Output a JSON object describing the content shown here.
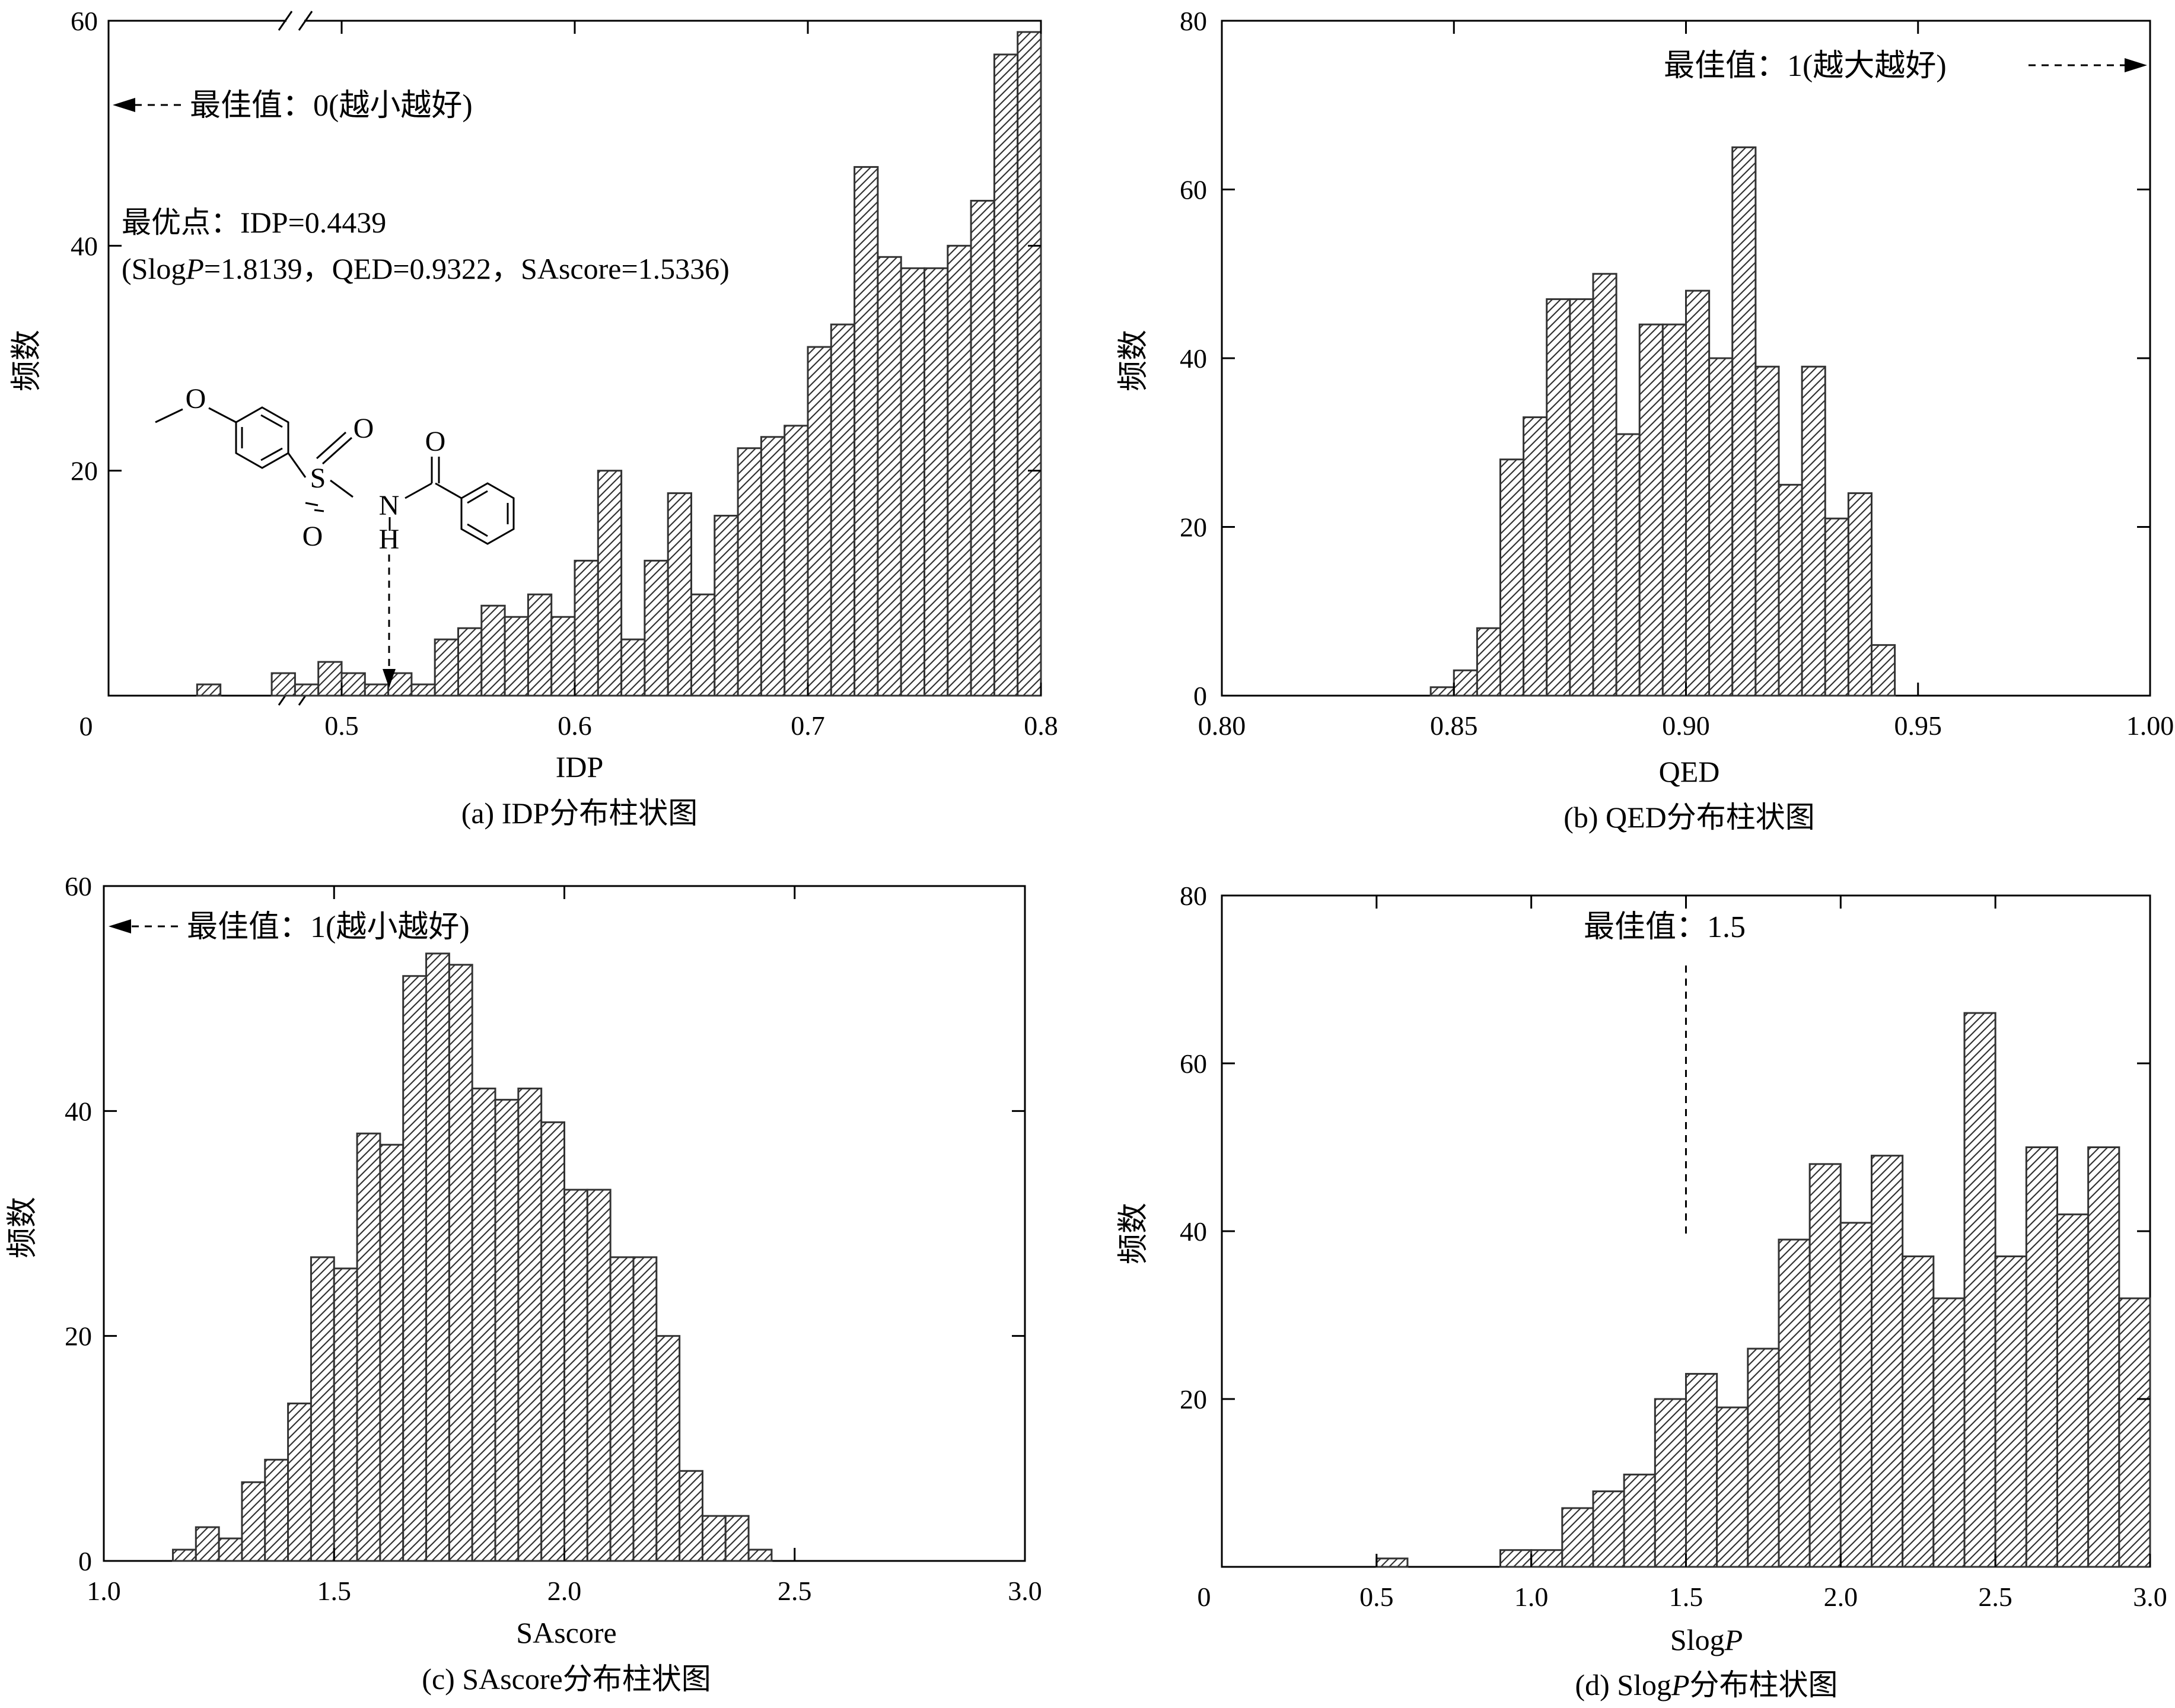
{
  "chart_data": [
    {
      "type": "bar",
      "caption": "(a) IDP分布柱状图",
      "xlabel": "IDP",
      "ylabel": "频数",
      "xlim": [
        0.4,
        0.8
      ],
      "ylim": [
        0,
        60
      ],
      "x_axis_break": true,
      "x_ticks": [
        0.5,
        0.6,
        0.7,
        0.8
      ],
      "x_tick_labels": [
        "0.5",
        "0.6",
        "0.7",
        "0.8"
      ],
      "x_origin_label": "0",
      "y_ticks": [
        20,
        40,
        60
      ],
      "y_tick_labels": [
        "20",
        "40",
        "60"
      ],
      "bin_width": 0.01,
      "x": [
        0.443,
        0.475,
        0.485,
        0.495,
        0.505,
        0.515,
        0.525,
        0.535,
        0.545,
        0.555,
        0.565,
        0.575,
        0.585,
        0.595,
        0.605,
        0.615,
        0.625,
        0.635,
        0.645,
        0.655,
        0.665,
        0.675,
        0.685,
        0.695,
        0.705,
        0.715,
        0.725,
        0.735,
        0.745,
        0.755,
        0.765,
        0.775,
        0.785,
        0.795
      ],
      "values": [
        1,
        2,
        1,
        3,
        2,
        1,
        2,
        1,
        5,
        6,
        8,
        7,
        9,
        7,
        12,
        20,
        5,
        12,
        18,
        9,
        16,
        22,
        23,
        24,
        31,
        33,
        47,
        39,
        38,
        38,
        40,
        44,
        57,
        59
      ],
      "annotations": {
        "best_value": "最佳值：0(越小越好)",
        "optimum_line1": "最优点：IDP=0.4439",
        "optimum_line2_pre": "(Slog",
        "optimum_line2_italic": "P",
        "optimum_line2_post": "=1.8139，QED=0.9322，SAscore=1.5336)"
      },
      "molecule_labels": {
        "o_methoxy": "O",
        "o_sulfonyl_up": "O",
        "o_sulfonyl_down": "O",
        "s": "S",
        "n": "N",
        "h": "H",
        "o_carbonyl": "O"
      }
    },
    {
      "type": "bar",
      "caption": "(b) QED分布柱状图",
      "xlabel": "QED",
      "ylabel": "频数",
      "xlim": [
        0.8,
        1.0
      ],
      "ylim": [
        0,
        80
      ],
      "x_ticks": [
        0.8,
        0.85,
        0.9,
        0.95,
        1.0
      ],
      "x_tick_labels": [
        "0.80",
        "0.85",
        "0.90",
        "0.95",
        "1.00"
      ],
      "y_ticks": [
        0,
        20,
        40,
        60,
        80
      ],
      "y_tick_labels": [
        "0",
        "20",
        "40",
        "60",
        "80"
      ],
      "bin_width": 0.005,
      "x": [
        0.8475,
        0.8525,
        0.8575,
        0.8625,
        0.8675,
        0.8725,
        0.8775,
        0.8825,
        0.8875,
        0.8925,
        0.8975,
        0.9025,
        0.9075,
        0.9125,
        0.9175,
        0.9225,
        0.9275,
        0.9325,
        0.9375,
        0.9425,
        0.9475
      ],
      "values": [
        1,
        3,
        8,
        28,
        33,
        47,
        47,
        50,
        31,
        44,
        44,
        48,
        40,
        65,
        39,
        25,
        39,
        21,
        24,
        6,
        0
      ],
      "annotations": {
        "best_value": "最佳值：1(越大越好)"
      }
    },
    {
      "type": "bar",
      "caption": "(c) SAscore分布柱状图",
      "xlabel": "SAscore",
      "ylabel": "频数",
      "xlim": [
        1.0,
        3.0
      ],
      "ylim": [
        0,
        60
      ],
      "x_ticks": [
        1.0,
        1.5,
        2.0,
        2.5,
        3.0
      ],
      "x_tick_labels": [
        "1.0",
        "1.5",
        "2.0",
        "2.5",
        "3.0"
      ],
      "y_ticks": [
        0,
        20,
        40,
        60
      ],
      "y_tick_labels": [
        "0",
        "20",
        "40",
        "60"
      ],
      "bin_width": 0.05,
      "x": [
        1.175,
        1.225,
        1.275,
        1.325,
        1.375,
        1.425,
        1.475,
        1.525,
        1.575,
        1.625,
        1.675,
        1.725,
        1.775,
        1.825,
        1.875,
        1.925,
        1.975,
        2.025,
        2.075,
        2.125,
        2.175,
        2.225,
        2.275,
        2.325,
        2.375,
        2.425
      ],
      "values": [
        1,
        3,
        2,
        7,
        9,
        14,
        27,
        26,
        38,
        37,
        52,
        54,
        53,
        42,
        41,
        42,
        39,
        33,
        33,
        27,
        27,
        20,
        8,
        4,
        4,
        1
      ],
      "annotations": {
        "best_value": "最佳值：1(越小越好)"
      }
    },
    {
      "type": "bar",
      "caption_pre": "(d) Slog",
      "caption_italic": "P",
      "caption_post": "分布柱状图",
      "xlabel_pre": "Slog",
      "xlabel_italic": "P",
      "ylabel": "频数",
      "xlim": [
        0,
        3.0
      ],
      "ylim": [
        0,
        80
      ],
      "x_ticks": [
        0.5,
        1.0,
        1.5,
        2.0,
        2.5,
        3.0
      ],
      "x_tick_labels": [
        "0.5",
        "1.0",
        "1.5",
        "2.0",
        "2.5",
        "3.0"
      ],
      "x_origin_label": "0",
      "y_ticks": [
        20,
        40,
        60,
        80
      ],
      "y_tick_labels": [
        "20",
        "40",
        "60",
        "80"
      ],
      "bin_width": 0.1,
      "x": [
        0.55,
        0.95,
        1.05,
        1.15,
        1.25,
        1.35,
        1.45,
        1.55,
        1.65,
        1.75,
        1.85,
        1.95,
        2.05,
        2.15,
        2.25,
        2.35,
        2.45,
        2.55,
        2.65,
        2.75,
        2.85,
        2.95
      ],
      "values": [
        1,
        2,
        2,
        7,
        9,
        11,
        20,
        23,
        19,
        26,
        39,
        48,
        41,
        49,
        37,
        32,
        66,
        37,
        50,
        42,
        50,
        32
      ],
      "annotations": {
        "best_value": "最佳值：1.5",
        "best_value_x": 1.5
      }
    }
  ]
}
